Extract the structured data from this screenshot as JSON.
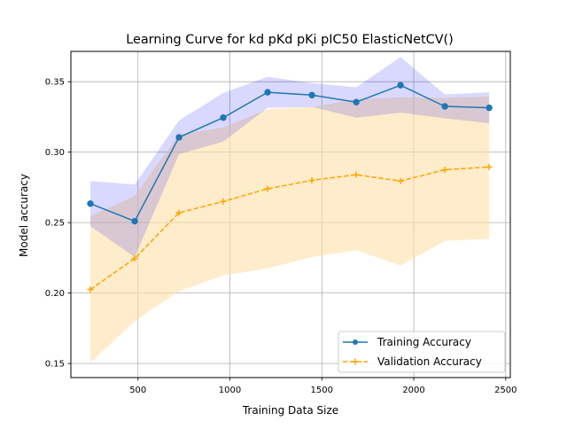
{
  "chart_data": {
    "type": "line",
    "title": "Learning Curve for kd pKd pKi pIC50 ElasticNetCV()",
    "xlabel": "Training Data Size",
    "ylabel": "Model accuracy",
    "xlim": [
      135,
      2525
    ],
    "ylim": [
      0.14,
      0.3715
    ],
    "x_ticks": [
      500,
      1000,
      1500,
      2000,
      2500
    ],
    "y_ticks": [
      0.15,
      0.2,
      0.25,
      0.3,
      0.35
    ],
    "x_tick_labels": [
      "500",
      "1000",
      "1500",
      "2000",
      "2500"
    ],
    "y_tick_labels": [
      "0.15",
      "0.20",
      "0.25",
      "0.30",
      "0.35"
    ],
    "grid": true,
    "legend_position": "lower-right",
    "x": [
      241,
      482,
      723,
      964,
      1205,
      1446,
      1687,
      1928,
      2169,
      2410
    ],
    "series": [
      {
        "name": "Training Accuracy",
        "color": "#1f77b4",
        "band_color": "#0000ff",
        "line_style": "solid",
        "marker": "circle",
        "values": [
          0.2635,
          0.251,
          0.3105,
          0.3245,
          0.3425,
          0.3405,
          0.3355,
          0.3475,
          0.3325,
          0.3315
        ],
        "band_upper": [
          0.2795,
          0.277,
          0.3225,
          0.342,
          0.3535,
          0.349,
          0.346,
          0.3675,
          0.341,
          0.3425
        ],
        "band_lower": [
          0.2475,
          0.2255,
          0.2985,
          0.3075,
          0.3315,
          0.332,
          0.3245,
          0.328,
          0.324,
          0.3205
        ]
      },
      {
        "name": "Validation Accuracy",
        "color": "#ffa500",
        "band_color": "#ffe0a8",
        "line_style": "dashed",
        "marker": "plus",
        "values": [
          0.2025,
          0.2245,
          0.257,
          0.265,
          0.274,
          0.28,
          0.284,
          0.2795,
          0.2875,
          0.2895
        ],
        "band_upper": [
          0.2545,
          0.269,
          0.3125,
          0.3175,
          0.3305,
          0.332,
          0.3375,
          0.339,
          0.3385,
          0.3395
        ],
        "band_lower": [
          0.1505,
          0.18,
          0.2015,
          0.2125,
          0.2175,
          0.2255,
          0.2305,
          0.2195,
          0.237,
          0.2385
        ]
      }
    ]
  }
}
